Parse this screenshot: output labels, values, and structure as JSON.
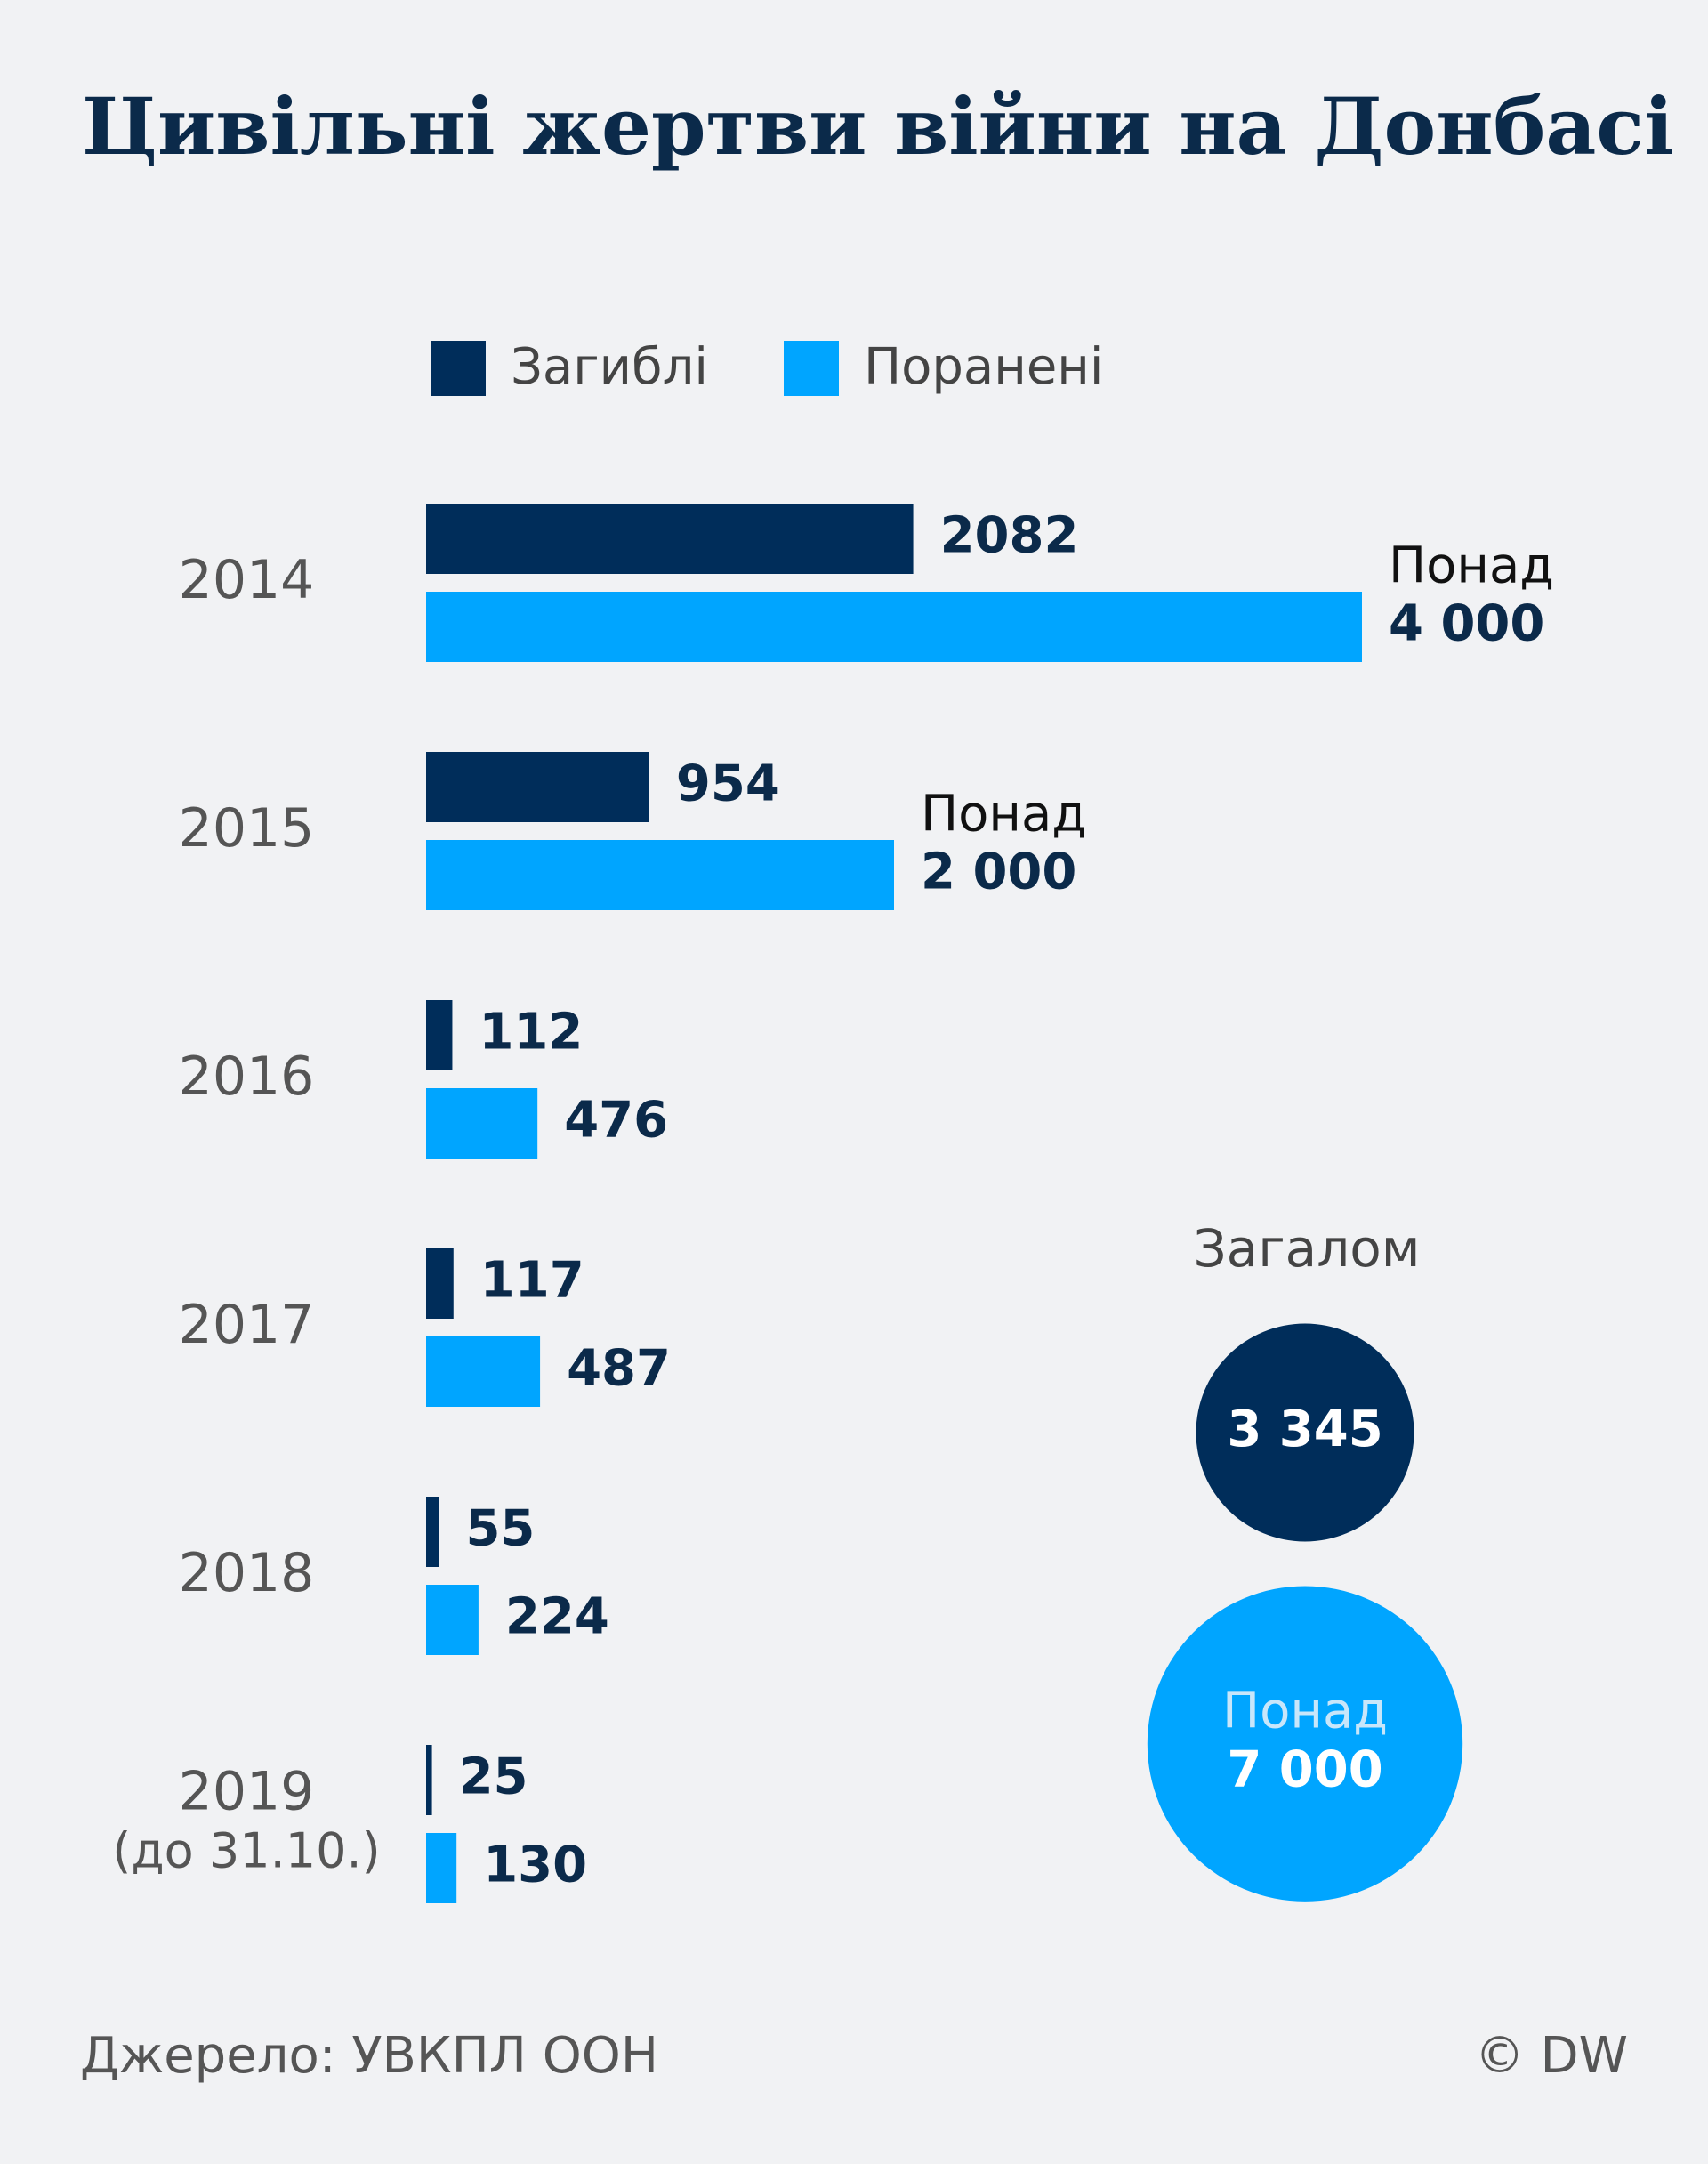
{
  "chart_data": {
    "type": "bar",
    "orientation": "horizontal",
    "title": "Цивільні жертви війни на Донбасі",
    "categories": [
      "2014",
      "2015",
      "2016",
      "2017",
      "2018",
      "2019\n(до 31.10.)"
    ],
    "series": [
      {
        "name": "Загиблі",
        "color": "#002d5a",
        "values": [
          2082,
          954,
          112,
          117,
          55,
          25
        ]
      },
      {
        "name": "Поранені",
        "color": "#00a5ff",
        "values": [
          4000,
          2000,
          476,
          487,
          224,
          130
        ],
        "value_labels": [
          "Понад\n4 000",
          "Понад\n2 000",
          "476",
          "487",
          "224",
          "130"
        ]
      }
    ],
    "totals": {
      "title": "Загалом",
      "items": [
        {
          "value": 3345,
          "label": "3 345"
        },
        {
          "value": 7000,
          "label": "Понад\n7 000"
        }
      ]
    },
    "source": "Джерело: УВКПЛ ООН",
    "credit": "© DW"
  }
}
